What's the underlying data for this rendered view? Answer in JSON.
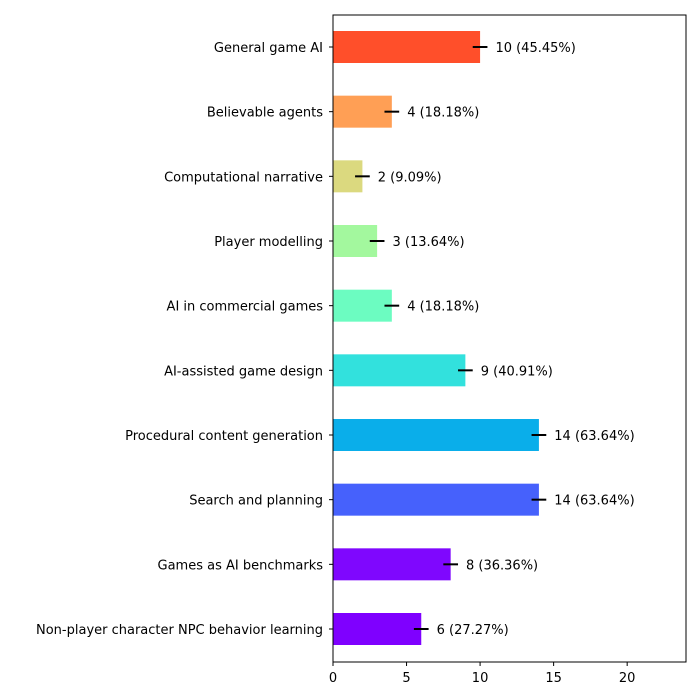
{
  "chart_data": {
    "type": "bar",
    "orientation": "horizontal",
    "title": "",
    "xlabel": "",
    "ylabel": "",
    "xlim": [
      0,
      24
    ],
    "xticks": [
      0,
      5,
      10,
      15,
      20
    ],
    "grid": false,
    "categories": [
      "General game AI",
      "Believable agents",
      "Computational narrative",
      "Player modelling",
      "AI in commercial games",
      "AI-assisted game design",
      "Procedural content generation",
      "Search and planning",
      "Games as AI benchmarks",
      "Non-player character NPC behavior learning"
    ],
    "values": [
      10,
      4,
      2,
      3,
      4,
      9,
      14,
      14,
      8,
      6
    ],
    "data_labels": [
      "10 (45.45%)",
      "4 (18.18%)",
      "2 (9.09%)",
      "3 (13.64%)",
      "4 (18.18%)",
      "9 (40.91%)",
      "14 (63.64%)",
      "14 (63.64%)",
      "8 (36.36%)",
      "6 (27.27%)"
    ],
    "error": 0.5,
    "colors": [
      "#ff4f2a",
      "#ff9f55",
      "#dbd97f",
      "#a3f89e",
      "#6cfcc1",
      "#32e1dd",
      "#0aaeea",
      "#4661fc",
      "#7f07fe",
      "#7f00ff"
    ]
  }
}
